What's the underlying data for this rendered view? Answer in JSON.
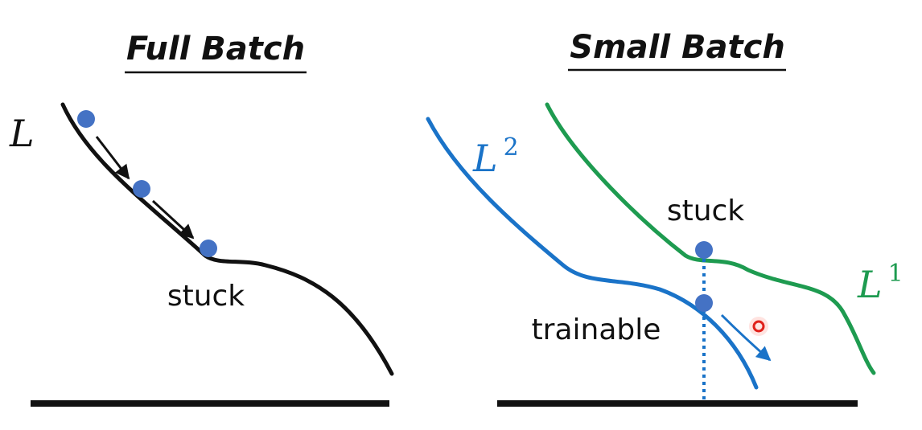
{
  "colors": {
    "ink": "#111111",
    "ball": "#4472c4",
    "blue_curve": "#1a73c8",
    "green_curve": "#1e9b50",
    "cursor": "#e0201a"
  },
  "left_panel": {
    "title": "Full Batch",
    "loss_label": "L",
    "point_label": "stuck"
  },
  "right_panel": {
    "title": "Small Batch",
    "blue_curve_label": {
      "base": "L",
      "sup": "2"
    },
    "green_curve_label": {
      "base": "L",
      "sup": "1"
    },
    "stuck_label": "stuck",
    "trainable_label": "trainable"
  }
}
